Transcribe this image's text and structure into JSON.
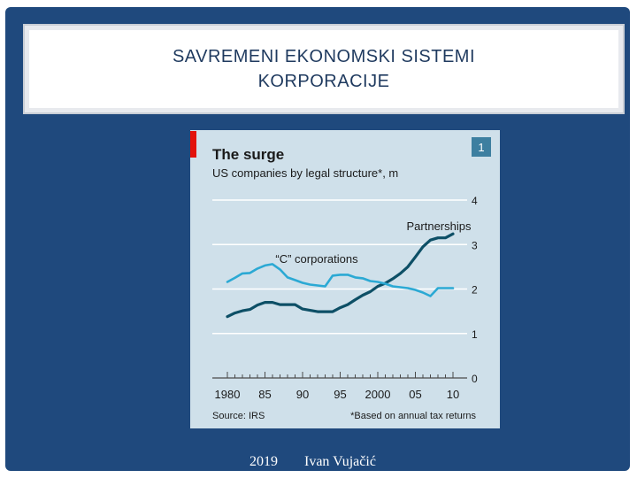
{
  "slide": {
    "title_line1": "SAVREMENI EKONOMSKI SISTEMI",
    "title_line2": "KORPORACIJE",
    "footer_year": "2019",
    "footer_author": "Ivan Vujačić"
  },
  "colors": {
    "slide_bg": "#1f497d",
    "chart_bg": "#cfe0ea",
    "partnerships": "#0d4f66",
    "c_corporations": "#2ba9d4",
    "red_tag": "#e3120b"
  },
  "chart_data": {
    "type": "line",
    "title": "The surge",
    "subtitle": "US companies by legal structure*, m",
    "badge": "1",
    "source": "Source: IRS",
    "footnote": "*Based on annual tax returns",
    "xlim": [
      1980,
      2010
    ],
    "ylim": [
      0,
      4
    ],
    "y_ticks": [
      "0",
      "1",
      "2",
      "3",
      "4"
    ],
    "x_tick_labels": [
      {
        "year": 1980,
        "label": "1980"
      },
      {
        "year": 1985,
        "label": "85"
      },
      {
        "year": 1990,
        "label": "90"
      },
      {
        "year": 1995,
        "label": "95"
      },
      {
        "year": 2000,
        "label": "2000"
      },
      {
        "year": 2005,
        "label": "05"
      },
      {
        "year": 2010,
        "label": "10"
      }
    ],
    "grid": true,
    "series": [
      {
        "name": "Partnerships",
        "x": [
          1980,
          1981,
          1982,
          1983,
          1984,
          1985,
          1986,
          1987,
          1988,
          1989,
          1990,
          1991,
          1992,
          1993,
          1994,
          1995,
          1996,
          1997,
          1998,
          1999,
          2000,
          2001,
          2002,
          2003,
          2004,
          2005,
          2006,
          2007,
          2008,
          2009,
          2010
        ],
        "values": [
          1.38,
          1.46,
          1.51,
          1.54,
          1.64,
          1.7,
          1.7,
          1.65,
          1.65,
          1.65,
          1.55,
          1.52,
          1.49,
          1.49,
          1.49,
          1.58,
          1.65,
          1.76,
          1.86,
          1.94,
          2.06,
          2.13,
          2.23,
          2.35,
          2.5,
          2.72,
          2.95,
          3.1,
          3.15,
          3.15,
          3.24
        ]
      },
      {
        "name": "“C” corporations",
        "x": [
          1980,
          1981,
          1982,
          1983,
          1984,
          1985,
          1986,
          1987,
          1988,
          1989,
          1990,
          1991,
          1992,
          1993,
          1994,
          1995,
          1996,
          1997,
          1998,
          1999,
          2000,
          2001,
          2002,
          2003,
          2004,
          2005,
          2006,
          2007,
          2008,
          2009,
          2010
        ],
        "values": [
          2.16,
          2.25,
          2.35,
          2.36,
          2.46,
          2.53,
          2.56,
          2.44,
          2.26,
          2.2,
          2.14,
          2.1,
          2.08,
          2.06,
          2.3,
          2.32,
          2.32,
          2.26,
          2.24,
          2.18,
          2.16,
          2.12,
          2.06,
          2.04,
          2.02,
          1.98,
          1.92,
          1.84,
          2.02,
          2.02,
          2.02
        ]
      }
    ]
  }
}
